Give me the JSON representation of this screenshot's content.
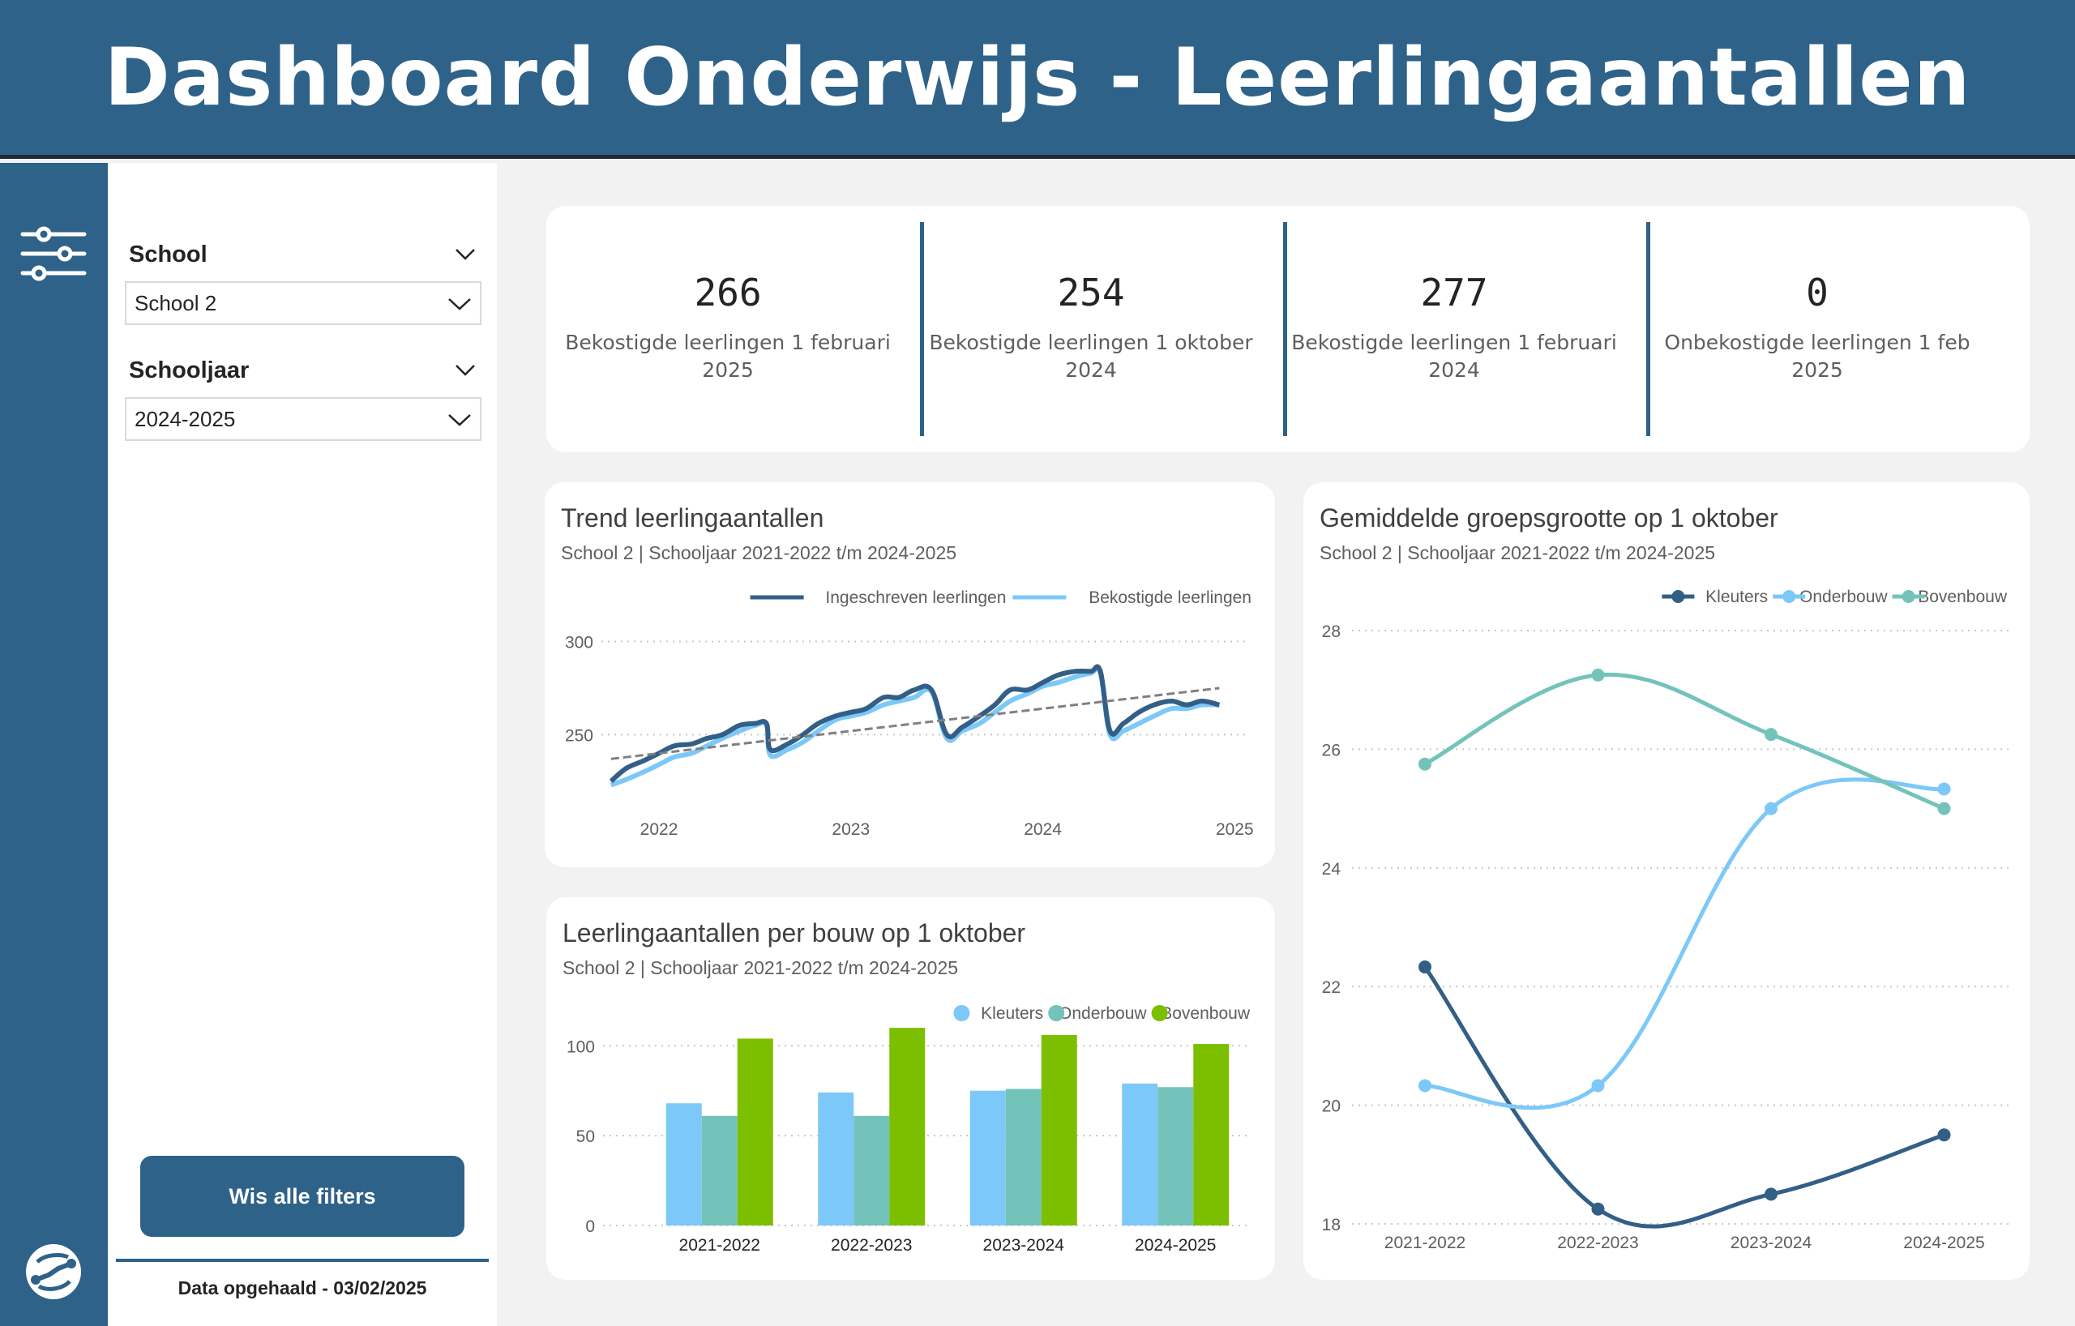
{
  "header": {
    "title": "Dashboard Onderwijs - Leerlingaantallen"
  },
  "icons": {
    "filter": "sliders-icon",
    "logo": "brand-logo-icon",
    "chevron": "chevron-down-icon"
  },
  "colors": {
    "brand": "#2e6289",
    "light_blue": "#7cc8f8",
    "teal": "#74c3bb",
    "green": "#7cbf00",
    "dark_blue": "#335f87",
    "trend": "#808080"
  },
  "filters": {
    "school": {
      "title": "School",
      "value": "School 2"
    },
    "schooljaar": {
      "title": "Schooljaar",
      "value": "2024-2025"
    },
    "clear_label": "Wis alle filters",
    "data_date": "Data opgehaald - 03/02/2025"
  },
  "kpis": [
    {
      "value": "266",
      "label": "Bekostigde leerlingen 1 februari 2025"
    },
    {
      "value": "254",
      "label": "Bekostigde leerlingen 1 oktober 2024"
    },
    {
      "value": "277",
      "label": "Bekostigde leerlingen 1 februari 2024"
    },
    {
      "value": "0",
      "label": "Onbekostigde leerlingen 1 feb 2025"
    }
  ],
  "trend": {
    "title": "Trend leerlingaantallen",
    "subtitle": "School 2 | Schooljaar 2021-2022 t/m 2024-2025"
  },
  "bouw": {
    "title": "Leerlingaantallen per bouw op 1 oktober",
    "subtitle": "School 2 | Schooljaar 2021-2022 t/m 2024-2025"
  },
  "groep": {
    "title": "Gemiddelde groepsgrootte op 1 oktober",
    "subtitle": "School 2 | Schooljaar 2021-2022 t/m 2024-2025"
  },
  "chart_data": [
    {
      "type": "line",
      "x_ticks": [
        "2022",
        "2023",
        "2024",
        "2025"
      ],
      "y_ticks": [
        250,
        300
      ],
      "ylim": [
        218,
        305
      ],
      "xlim": [
        2021.7,
        2025.1
      ],
      "series": [
        {
          "name": "Ingeschreven leerlingen",
          "color": "#335f87",
          "points": [
            [
              2021.75,
              225
            ],
            [
              2021.83,
              232
            ],
            [
              2021.92,
              236
            ],
            [
              2022.0,
              240
            ],
            [
              2022.08,
              244
            ],
            [
              2022.17,
              245
            ],
            [
              2022.25,
              248
            ],
            [
              2022.33,
              250
            ],
            [
              2022.42,
              255
            ],
            [
              2022.5,
              256
            ],
            [
              2022.56,
              256
            ],
            [
              2022.58,
              242
            ],
            [
              2022.67,
              245
            ],
            [
              2022.75,
              250
            ],
            [
              2022.83,
              256
            ],
            [
              2022.92,
              260
            ],
            [
              2023.0,
              262
            ],
            [
              2023.08,
              264
            ],
            [
              2023.17,
              270
            ],
            [
              2023.25,
              270
            ],
            [
              2023.33,
              274
            ],
            [
              2023.42,
              274
            ],
            [
              2023.5,
              250
            ],
            [
              2023.58,
              254
            ],
            [
              2023.67,
              260
            ],
            [
              2023.75,
              266
            ],
            [
              2023.83,
              274
            ],
            [
              2023.92,
              274
            ],
            [
              2024.0,
              278
            ],
            [
              2024.08,
              282
            ],
            [
              2024.17,
              284
            ],
            [
              2024.25,
              284
            ],
            [
              2024.3,
              284
            ],
            [
              2024.35,
              252
            ],
            [
              2024.42,
              256
            ],
            [
              2024.5,
              262
            ],
            [
              2024.58,
              266
            ],
            [
              2024.67,
              268
            ],
            [
              2024.75,
              266
            ],
            [
              2024.83,
              268
            ],
            [
              2024.92,
              266
            ]
          ]
        },
        {
          "name": "Bekostigde leerlingen",
          "color": "#7cc8f8",
          "points": [
            [
              2021.75,
              223
            ],
            [
              2021.83,
              226
            ],
            [
              2021.92,
              230
            ],
            [
              2022.0,
              234
            ],
            [
              2022.08,
              238
            ],
            [
              2022.17,
              240
            ],
            [
              2022.25,
              244
            ],
            [
              2022.33,
              248
            ],
            [
              2022.42,
              252
            ],
            [
              2022.5,
              255
            ],
            [
              2022.56,
              255
            ],
            [
              2022.58,
              239
            ],
            [
              2022.67,
              242
            ],
            [
              2022.75,
              246
            ],
            [
              2022.83,
              252
            ],
            [
              2022.92,
              258
            ],
            [
              2023.0,
              260
            ],
            [
              2023.08,
              262
            ],
            [
              2023.17,
              266
            ],
            [
              2023.25,
              268
            ],
            [
              2023.33,
              270
            ],
            [
              2023.42,
              273
            ],
            [
              2023.5,
              248
            ],
            [
              2023.58,
              252
            ],
            [
              2023.67,
              256
            ],
            [
              2023.75,
              262
            ],
            [
              2023.83,
              268
            ],
            [
              2023.92,
              272
            ],
            [
              2024.0,
              276
            ],
            [
              2024.08,
              278
            ],
            [
              2024.17,
              281
            ],
            [
              2024.25,
              283
            ],
            [
              2024.3,
              283
            ],
            [
              2024.35,
              250
            ],
            [
              2024.42,
              252
            ],
            [
              2024.5,
              256
            ],
            [
              2024.58,
              260
            ],
            [
              2024.67,
              264
            ],
            [
              2024.75,
              264
            ],
            [
              2024.83,
              266
            ],
            [
              2024.92,
              266
            ]
          ]
        }
      ],
      "trendline": [
        [
          2021.75,
          237
        ],
        [
          2024.92,
          275
        ]
      ]
    },
    {
      "type": "bar",
      "categories": [
        "2021-2022",
        "2022-2023",
        "2023-2024",
        "2024-2025"
      ],
      "y_ticks": [
        0,
        50,
        100
      ],
      "ylim": [
        0,
        115
      ],
      "series": [
        {
          "name": "Kleuters",
          "color": "#7cc8f8",
          "values": [
            68,
            74,
            75,
            79
          ]
        },
        {
          "name": "Onderbouw",
          "color": "#74c3bb",
          "values": [
            61,
            61,
            76,
            77
          ]
        },
        {
          "name": "Bovenbouw",
          "color": "#7cbf00",
          "values": [
            104,
            110,
            106,
            101
          ]
        }
      ]
    },
    {
      "type": "line",
      "categories": [
        "2021-2022",
        "2022-2023",
        "2023-2024",
        "2024-2025"
      ],
      "y_ticks": [
        18,
        20,
        22,
        24,
        26,
        28
      ],
      "ylim": [
        18,
        28
      ],
      "series": [
        {
          "name": "Kleuters",
          "color": "#335f87",
          "values": [
            22.33,
            18.25,
            18.5,
            19.5
          ]
        },
        {
          "name": "Onderbouw",
          "color": "#7cc8f8",
          "values": [
            20.33,
            20.33,
            25.0,
            25.33
          ]
        },
        {
          "name": "Bovenbouw",
          "color": "#74c3bb",
          "values": [
            25.75,
            27.25,
            26.25,
            25.0
          ]
        }
      ]
    }
  ]
}
